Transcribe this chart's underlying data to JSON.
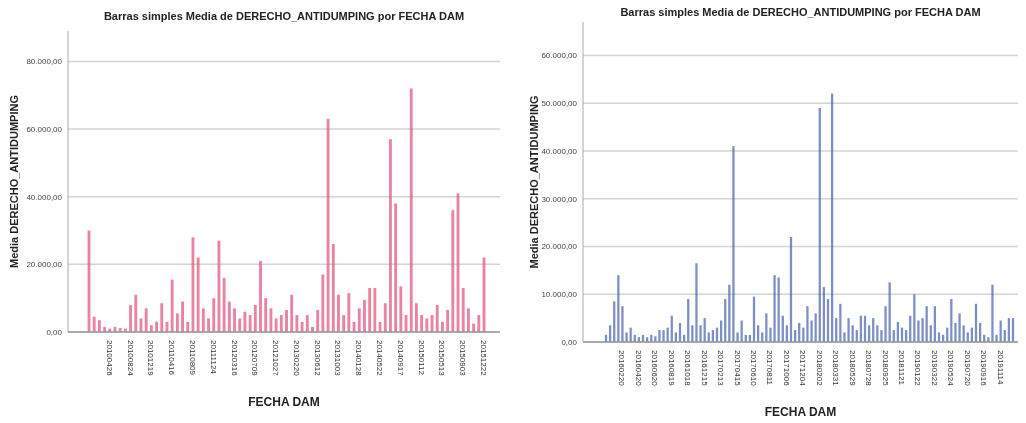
{
  "chart_data": [
    {
      "type": "bar",
      "title": "Barras simples Media de DERECHO_ANTIDUMPING por FECHA DAM",
      "xlabel": "FECHA DAM",
      "ylabel": "Media DERECHO_ANTIDUMPING",
      "color": "#e05a80",
      "grid": "y",
      "ylim": [
        0,
        89000
      ],
      "yticks": [
        {
          "value": 0,
          "label": "0,00"
        },
        {
          "value": 20000,
          "label": "20.000,00"
        },
        {
          "value": 40000,
          "label": "40.000,00"
        },
        {
          "value": 60000,
          "label": "60.000,00"
        },
        {
          "value": 80000,
          "label": "80.000,00"
        }
      ],
      "categories": [
        null,
        null,
        null,
        null,
        "20100426",
        null,
        null,
        null,
        "20100824",
        null,
        null,
        null,
        "20101219",
        null,
        null,
        null,
        "20110416",
        null,
        null,
        null,
        "20110809",
        null,
        null,
        null,
        "20111124",
        null,
        null,
        null,
        "20120316",
        null,
        null,
        null,
        "20120709",
        null,
        null,
        null,
        "20121027",
        null,
        null,
        null,
        "20130220",
        null,
        null,
        null,
        "20130612",
        null,
        null,
        null,
        "20131003",
        null,
        null,
        null,
        "20140128",
        null,
        null,
        null,
        "20140522",
        null,
        null,
        null,
        "20140917",
        null,
        null,
        null,
        "20150112",
        null,
        null,
        null,
        "20150513",
        null,
        null,
        null,
        "20150903",
        null,
        null,
        null,
        "20151222"
      ],
      "values": [
        30000,
        4500,
        3500,
        1500,
        1000,
        1500,
        1200,
        1000,
        8000,
        11000,
        4000,
        7000,
        2000,
        3000,
        8500,
        3000,
        15500,
        5500,
        9000,
        3000,
        28000,
        22000,
        7000,
        4000,
        10000,
        27000,
        16000,
        9000,
        7000,
        4000,
        6000,
        5000,
        8000,
        21000,
        10000,
        7000,
        4000,
        5000,
        6500,
        11000,
        5000,
        3000,
        5000,
        1500,
        6500,
        17000,
        63000,
        26000,
        11000,
        5000,
        11500,
        3000,
        7000,
        9500,
        13000,
        13000,
        3000,
        8500,
        57000,
        38000,
        13500,
        5000,
        72000,
        8500,
        5000,
        4000,
        5000,
        8000,
        3000,
        6500,
        36000,
        41000,
        13000,
        7000,
        2500,
        5000,
        22000
      ]
    },
    {
      "type": "bar",
      "title": "Barras simples Media de DERECHO_ANTIDUMPING por FECHA DAM",
      "xlabel": "FECHA DAM",
      "ylabel": "Media DERECHO_ANTIDUMPING",
      "color": "#5068b0",
      "grid": "y",
      "ylim": [
        0,
        67000
      ],
      "yticks": [
        {
          "value": 0,
          "label": "0,00"
        },
        {
          "value": 10000,
          "label": "10.000,00"
        },
        {
          "value": 20000,
          "label": "20.000,00"
        },
        {
          "value": 30000,
          "label": "30.000,00"
        },
        {
          "value": 40000,
          "label": "40.000,00"
        },
        {
          "value": 50000,
          "label": "50.000,00"
        },
        {
          "value": 60000,
          "label": "60.000,00"
        }
      ],
      "categories": [
        null,
        null,
        null,
        null,
        "20160220",
        null,
        null,
        null,
        "20160420",
        null,
        null,
        null,
        "20160620",
        null,
        null,
        null,
        "20160819",
        null,
        null,
        null,
        "20161018",
        null,
        null,
        null,
        "20161215",
        null,
        null,
        null,
        "20170213",
        null,
        null,
        null,
        "20170415",
        null,
        null,
        null,
        "20170610",
        null,
        null,
        null,
        "20170811",
        null,
        null,
        null,
        "20171006",
        null,
        null,
        null,
        "20171204",
        null,
        null,
        null,
        "20180202",
        null,
        null,
        null,
        "20180331",
        null,
        null,
        null,
        "20180529",
        null,
        null,
        null,
        "20180728",
        null,
        null,
        null,
        "20180925",
        null,
        null,
        null,
        "20181121",
        null,
        null,
        null,
        "20190122",
        null,
        null,
        null,
        "20190322",
        null,
        null,
        null,
        "20190524",
        null,
        null,
        null,
        "20190720",
        null,
        null,
        null,
        "20190916",
        null,
        null,
        null,
        "20191114",
        null,
        null,
        null
      ],
      "values": [
        1500,
        3500,
        8500,
        14000,
        7500,
        2000,
        3000,
        1500,
        1000,
        1500,
        1000,
        1500,
        1200,
        2500,
        2500,
        3000,
        5500,
        2000,
        4000,
        1500,
        9000,
        3500,
        16500,
        3500,
        5000,
        2000,
        2500,
        3000,
        4500,
        9000,
        12000,
        41000,
        2000,
        4500,
        1500,
        1500,
        9500,
        3500,
        2000,
        6000,
        3000,
        14000,
        13500,
        5500,
        3500,
        22000,
        2500,
        4000,
        3000,
        7500,
        4500,
        6000,
        49000,
        11500,
        9000,
        52000,
        5000,
        8000,
        2000,
        5000,
        3500,
        2500,
        5500,
        5500,
        3500,
        5000,
        3500,
        2500,
        7500,
        12500,
        2500,
        4200,
        3000,
        2500,
        5500,
        10000,
        4500,
        5000,
        7500,
        3500,
        7500,
        2000,
        1500,
        3000,
        9000,
        4000,
        6000,
        3500,
        2000,
        3000,
        8000,
        4000,
        1500,
        1000,
        12000,
        1500,
        4500,
        2500,
        5000,
        5000
      ]
    }
  ]
}
